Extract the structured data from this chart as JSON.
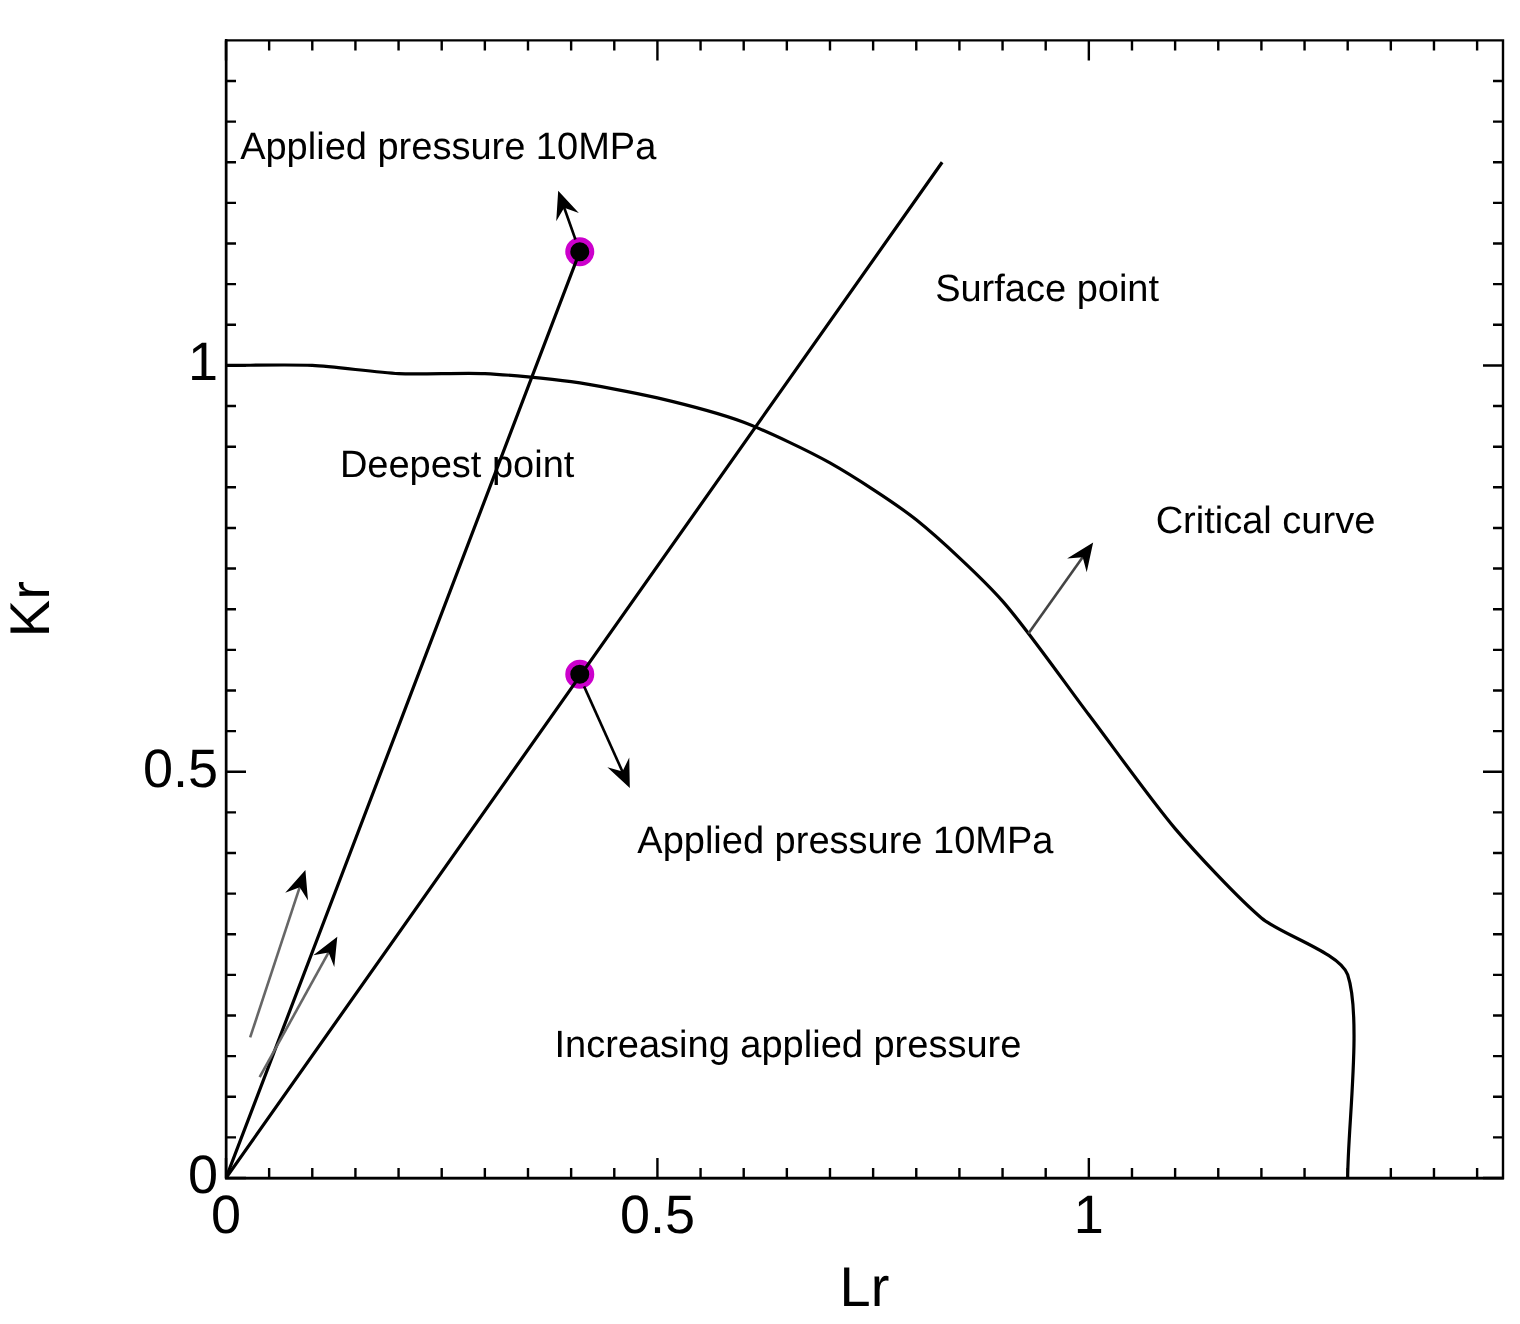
{
  "chart_data": {
    "type": "line",
    "xlabel": "Lr",
    "ylabel": "Kr",
    "xlim": [
      0,
      1.48
    ],
    "ylim": [
      0,
      1.4
    ],
    "grid": false,
    "legend": false,
    "line_style": "solid",
    "xticks": [
      0,
      {
        "value": 0.05,
        "label": null
      },
      {
        "value": 0.1,
        "label": null
      },
      {
        "value": 0.15,
        "label": null
      },
      {
        "value": 0.2,
        "label": null
      },
      {
        "value": 0.25,
        "label": null
      },
      {
        "value": 0.3,
        "label": null
      },
      {
        "value": 0.35,
        "label": null
      },
      {
        "value": 0.4,
        "label": null
      },
      {
        "value": 0.45,
        "label": null
      },
      0.5,
      {
        "value": 0.55,
        "label": null
      },
      {
        "value": 0.6,
        "label": null
      },
      {
        "value": 0.65,
        "label": null
      },
      {
        "value": 0.7,
        "label": null
      },
      {
        "value": 0.75,
        "label": null
      },
      {
        "value": 0.8,
        "label": null
      },
      {
        "value": 0.85,
        "label": null
      },
      {
        "value": 0.9,
        "label": null
      },
      {
        "value": 0.95,
        "label": null
      },
      1,
      {
        "value": 1.05,
        "label": null
      },
      {
        "value": 1.1,
        "label": null
      },
      {
        "value": 1.15,
        "label": null
      },
      {
        "value": 1.2,
        "label": null
      },
      {
        "value": 1.25,
        "label": null
      },
      {
        "value": 1.3,
        "label": null
      },
      {
        "value": 1.35,
        "label": null
      },
      {
        "value": 1.4,
        "label": null
      },
      {
        "value": 1.45,
        "label": null
      }
    ],
    "yticks": [
      0,
      {
        "value": 0.05,
        "label": null
      },
      {
        "value": 0.1,
        "label": null
      },
      {
        "value": 0.15,
        "label": null
      },
      {
        "value": 0.2,
        "label": null
      },
      {
        "value": 0.25,
        "label": null
      },
      {
        "value": 0.3,
        "label": null
      },
      {
        "value": 0.35,
        "label": null
      },
      {
        "value": 0.4,
        "label": null
      },
      {
        "value": 0.45,
        "label": null
      },
      0.5,
      {
        "value": 0.55,
        "label": null
      },
      {
        "value": 0.6,
        "label": null
      },
      {
        "value": 0.65,
        "label": null
      },
      {
        "value": 0.7,
        "label": null
      },
      {
        "value": 0.75,
        "label": null
      },
      {
        "value": 0.8,
        "label": null
      },
      {
        "value": 0.85,
        "label": null
      },
      {
        "value": 0.9,
        "label": null
      },
      {
        "value": 0.95,
        "label": null
      },
      1,
      {
        "value": 1.05,
        "label": null
      },
      {
        "value": 1.1,
        "label": null
      },
      {
        "value": 1.15,
        "label": null
      },
      {
        "value": 1.2,
        "label": null
      },
      {
        "value": 1.25,
        "label": null
      },
      {
        "value": 1.3,
        "label": null
      },
      {
        "value": 1.35,
        "label": null
      }
    ],
    "series": [
      {
        "color": "#000000",
        "x": [
          0,
          0.1,
          0.2,
          0.3,
          0.4,
          0.5,
          0.6,
          0.7,
          0.8,
          0.9,
          1,
          1.1,
          1.2,
          1.3,
          1.3
        ],
        "values": [
          1,
          1,
          0.99,
          0.99,
          0.98,
          0.96,
          0.93,
          0.88,
          0.81,
          0.71,
          0.57,
          0.43,
          0.32,
          0.25,
          0
        ]
      },
      {
        "type": "line",
        "color": "#000000",
        "x": [
          0,
          0.41
        ],
        "values": [
          0,
          1.14
        ]
      },
      {
        "type": "line",
        "color": "#000000",
        "x": [
          0,
          0.83
        ],
        "values": [
          0,
          1.25
        ]
      },
      {
        "type": "scatter",
        "marker": "circle",
        "color": "#000000",
        "x": [
          0.41,
          0.41
        ],
        "values": [
          1.14,
          0.62
        ]
      }
    ],
    "annotations": [
      "Applied pressure 10MPa",
      "Deepest point",
      "Surface point",
      "Critical curve",
      "Applied pressure 10MPa",
      "Increasing applied pressure"
    ]
  }
}
